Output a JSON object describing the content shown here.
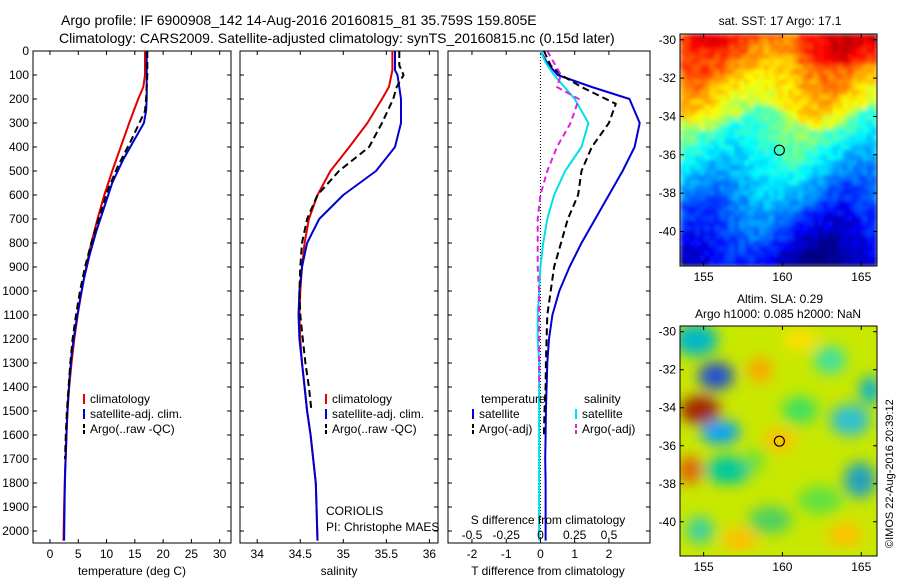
{
  "header": {
    "line1": "Argo profile: IF 6900908_142 14-Aug-2016 20160815_81 35.759S 159.805E",
    "line2": "Climatology: CARS2009. Satellite-adjusted climatology: synTS_20160815.nc (0.15d later)"
  },
  "credit": {
    "line1": "CORIOLIS",
    "line2": "PI: Christophe MAES"
  },
  "watermark": "©IMOS 22-Aug-2016 20:39:12",
  "colors": {
    "red": "#e00000",
    "blue": "#0000d0",
    "cyan": "#00e0e8",
    "magenta": "#e020e0",
    "black": "#000000"
  },
  "chart_data": [
    {
      "type": "line",
      "xlabel": "temperature (deg C)",
      "ylabel": "",
      "xlim": [
        -3,
        32
      ],
      "ylim": [
        2050,
        0
      ],
      "xticks": [
        0,
        5,
        10,
        15,
        20,
        25,
        30
      ],
      "yticks": [
        0,
        100,
        200,
        300,
        400,
        500,
        600,
        700,
        800,
        900,
        1000,
        1100,
        1200,
        1300,
        1400,
        1500,
        1600,
        1700,
        1800,
        1900,
        2000
      ],
      "legend": [
        "climatology",
        "satellite-adj. clim.",
        "Argo(..raw -QC)"
      ],
      "legend_position": "lower-center",
      "series": [
        {
          "name": "climatology",
          "color": "red",
          "dash": "",
          "x": [
            16.8,
            16.8,
            16.5,
            15.6,
            14.0,
            12.5,
            11.0,
            9.6,
            8.4,
            7.3,
            6.4,
            5.6,
            4.9,
            4.3,
            3.8,
            3.4,
            3.1,
            2.9,
            2.75,
            2.6,
            2.5,
            2.4
          ],
          "y": [
            0,
            100,
            150,
            200,
            300,
            400,
            500,
            600,
            700,
            800,
            900,
            1000,
            1100,
            1200,
            1300,
            1400,
            1500,
            1600,
            1700,
            1800,
            1900,
            2040
          ]
        },
        {
          "name": "satellite-adj. clim.",
          "color": "blue",
          "dash": "",
          "x": [
            17.1,
            17.1,
            17.1,
            17.0,
            16.6,
            15.4,
            13.0,
            11.0,
            9.6,
            8.2,
            7.0,
            6.0,
            5.2,
            4.5,
            3.9,
            3.5,
            3.2,
            3.0,
            2.85,
            2.7,
            2.6,
            2.5
          ],
          "y": [
            0,
            100,
            200,
            250,
            300,
            350,
            450,
            550,
            650,
            750,
            850,
            950,
            1050,
            1150,
            1250,
            1350,
            1450,
            1550,
            1650,
            1750,
            1850,
            2040
          ]
        },
        {
          "name": "Argo(..raw -QC)",
          "color": "black",
          "dash": "7,4",
          "x": [
            17.2,
            17.2,
            17.1,
            17.0,
            16.8,
            15.8,
            14.2,
            12.0,
            10.2,
            8.6,
            7.3,
            6.2,
            5.3,
            4.6,
            4.0,
            3.6,
            3.3,
            3.0,
            2.8,
            2.65
          ],
          "y": [
            0,
            100,
            150,
            200,
            250,
            300,
            380,
            480,
            580,
            700,
            800,
            900,
            1000,
            1100,
            1200,
            1300,
            1400,
            1500,
            1600,
            1700
          ]
        }
      ]
    },
    {
      "type": "line",
      "xlabel": "salinity",
      "ylabel": "",
      "xlim": [
        33.8,
        36.1
      ],
      "ylim": [
        2050,
        0
      ],
      "xticks": [
        34,
        34.5,
        35,
        35.5,
        36
      ],
      "legend": [
        "climatology",
        "satellite-adj. clim.",
        "Argo(..raw -QC)"
      ],
      "legend_position": "lower-right",
      "series": [
        {
          "name": "climatology",
          "color": "red",
          "dash": "",
          "x": [
            35.57,
            35.57,
            35.53,
            35.45,
            35.28,
            35.07,
            34.85,
            34.7,
            34.6,
            34.55,
            34.52,
            34.5,
            34.49,
            34.5,
            34.52,
            34.55,
            34.58,
            34.62,
            34.65,
            34.68,
            34.7
          ],
          "y": [
            0,
            80,
            150,
            200,
            300,
            400,
            500,
            600,
            700,
            800,
            900,
            1000,
            1100,
            1200,
            1300,
            1400,
            1500,
            1600,
            1700,
            1800,
            2040
          ]
        },
        {
          "name": "satellite-adj. clim.",
          "color": "blue",
          "dash": "",
          "x": [
            35.6,
            35.6,
            35.63,
            35.67,
            35.67,
            35.6,
            35.38,
            35.0,
            34.72,
            34.58,
            34.52,
            34.49,
            34.48,
            34.49,
            34.52,
            34.55,
            34.58,
            34.62,
            34.65,
            34.68,
            34.7
          ],
          "y": [
            0,
            80,
            100,
            200,
            300,
            400,
            500,
            600,
            700,
            800,
            900,
            1000,
            1100,
            1200,
            1300,
            1400,
            1500,
            1600,
            1700,
            1800,
            2040
          ]
        },
        {
          "name": "Argo(..raw -QC)",
          "color": "black",
          "dash": "7,4",
          "x": [
            35.65,
            35.65,
            35.7,
            35.62,
            35.58,
            35.45,
            35.3,
            34.95,
            34.7,
            34.58,
            34.52,
            34.5,
            34.49,
            34.5,
            34.53,
            34.56,
            34.6,
            34.63
          ],
          "y": [
            0,
            60,
            100,
            150,
            200,
            300,
            400,
            500,
            600,
            700,
            800,
            900,
            1000,
            1100,
            1200,
            1300,
            1400,
            1500
          ]
        }
      ]
    },
    {
      "type": "line",
      "xlabel": "T difference from climatology",
      "x2label": "S difference from climatology",
      "xlim": [
        -2.7,
        3.2
      ],
      "x2lim": [
        -0.675,
        0.8
      ],
      "ylim": [
        2050,
        0
      ],
      "xticks": [
        -2,
        -1,
        0,
        1,
        2
      ],
      "x2ticks": [
        -0.5,
        -0.25,
        0,
        0.25,
        0.5
      ],
      "legend_headers": [
        "temperature",
        "salinity"
      ],
      "legend": [
        "satellite",
        "Argo(-adj)",
        "satellite",
        "Argo(-adj)"
      ],
      "legend_position": "lower-center",
      "series": [
        {
          "name": "satellite",
          "group": "temperature",
          "color": "blue",
          "dash": "",
          "axis": "T",
          "x": [
            0,
            0.2,
            0.5,
            1.5,
            2.6,
            2.9,
            2.75,
            2.4,
            2.0,
            1.6,
            1.2,
            0.85,
            0.55,
            0.35,
            0.25,
            0.2,
            0.18,
            0.16,
            0.15,
            0.14,
            0.15,
            0.15
          ],
          "y": [
            0,
            50,
            100,
            150,
            200,
            300,
            400,
            500,
            600,
            700,
            800,
            900,
            1000,
            1100,
            1200,
            1300,
            1400,
            1500,
            1600,
            1700,
            1800,
            2040
          ]
        },
        {
          "name": "Argo(-adj)",
          "group": "temperature",
          "color": "black",
          "dash": "7,4",
          "axis": "T",
          "x": [
            0.1,
            0.3,
            0.6,
            1.2,
            2.2,
            2.0,
            1.5,
            1.2,
            1.1,
            0.8,
            0.6,
            0.4,
            0.3,
            0.2,
            0.18,
            0.16,
            0.15,
            0.12,
            0.1
          ],
          "y": [
            0,
            60,
            100,
            150,
            220,
            300,
            400,
            500,
            600,
            700,
            800,
            900,
            1000,
            1100,
            1200,
            1300,
            1400,
            1500,
            1600
          ]
        },
        {
          "name": "satellite",
          "group": "salinity",
          "color": "cyan",
          "dash": "",
          "axis": "S",
          "x": [
            0,
            0.04,
            0.1,
            0.25,
            0.35,
            0.3,
            0.18,
            0.1,
            0.05,
            0.02,
            0.0,
            -0.01,
            -0.02,
            -0.02,
            -0.01,
            -0.01,
            -0.01,
            -0.01,
            -0.01,
            -0.01,
            -0.01
          ],
          "y": [
            0,
            50,
            100,
            200,
            300,
            400,
            500,
            600,
            700,
            800,
            900,
            1000,
            1100,
            1200,
            1300,
            1400,
            1500,
            1600,
            1700,
            1800,
            2040
          ]
        },
        {
          "name": "Argo(-adj)",
          "group": "salinity",
          "color": "magenta",
          "dash": "6,4",
          "axis": "S",
          "x": [
            0.05,
            0.1,
            0.15,
            0.12,
            0.28,
            0.22,
            0.12,
            0.05,
            0.0,
            -0.02,
            -0.02,
            -0.02,
            -0.01,
            -0.01,
            -0.01,
            -0.01,
            -0.01
          ],
          "y": [
            0,
            50,
            100,
            150,
            200,
            300,
            400,
            500,
            600,
            700,
            800,
            900,
            1000,
            1100,
            1200,
            1300,
            1400
          ]
        }
      ]
    },
    {
      "type": "heatmap",
      "title": "sat. SST: 17 Argo: 17.1",
      "xlim": [
        153.5,
        166
      ],
      "ylim": [
        -41.8,
        -29.7
      ],
      "xticks": [
        155,
        160,
        165
      ],
      "yticks": [
        -30,
        -32,
        -34,
        -36,
        -38,
        -40
      ],
      "marker": {
        "lon": 159.805,
        "lat": -35.759
      }
    },
    {
      "type": "heatmap",
      "title_line1": "Altim. SLA: 0.29",
      "title_line2": "Argo h1000: 0.085 h2000: NaN",
      "xlim": [
        153.5,
        166
      ],
      "ylim": [
        -41.8,
        -29.7
      ],
      "xticks": [
        155,
        160,
        165
      ],
      "yticks": [
        -30,
        -32,
        -34,
        -36,
        -38,
        -40
      ],
      "marker": {
        "lon": 159.805,
        "lat": -35.759
      }
    }
  ]
}
